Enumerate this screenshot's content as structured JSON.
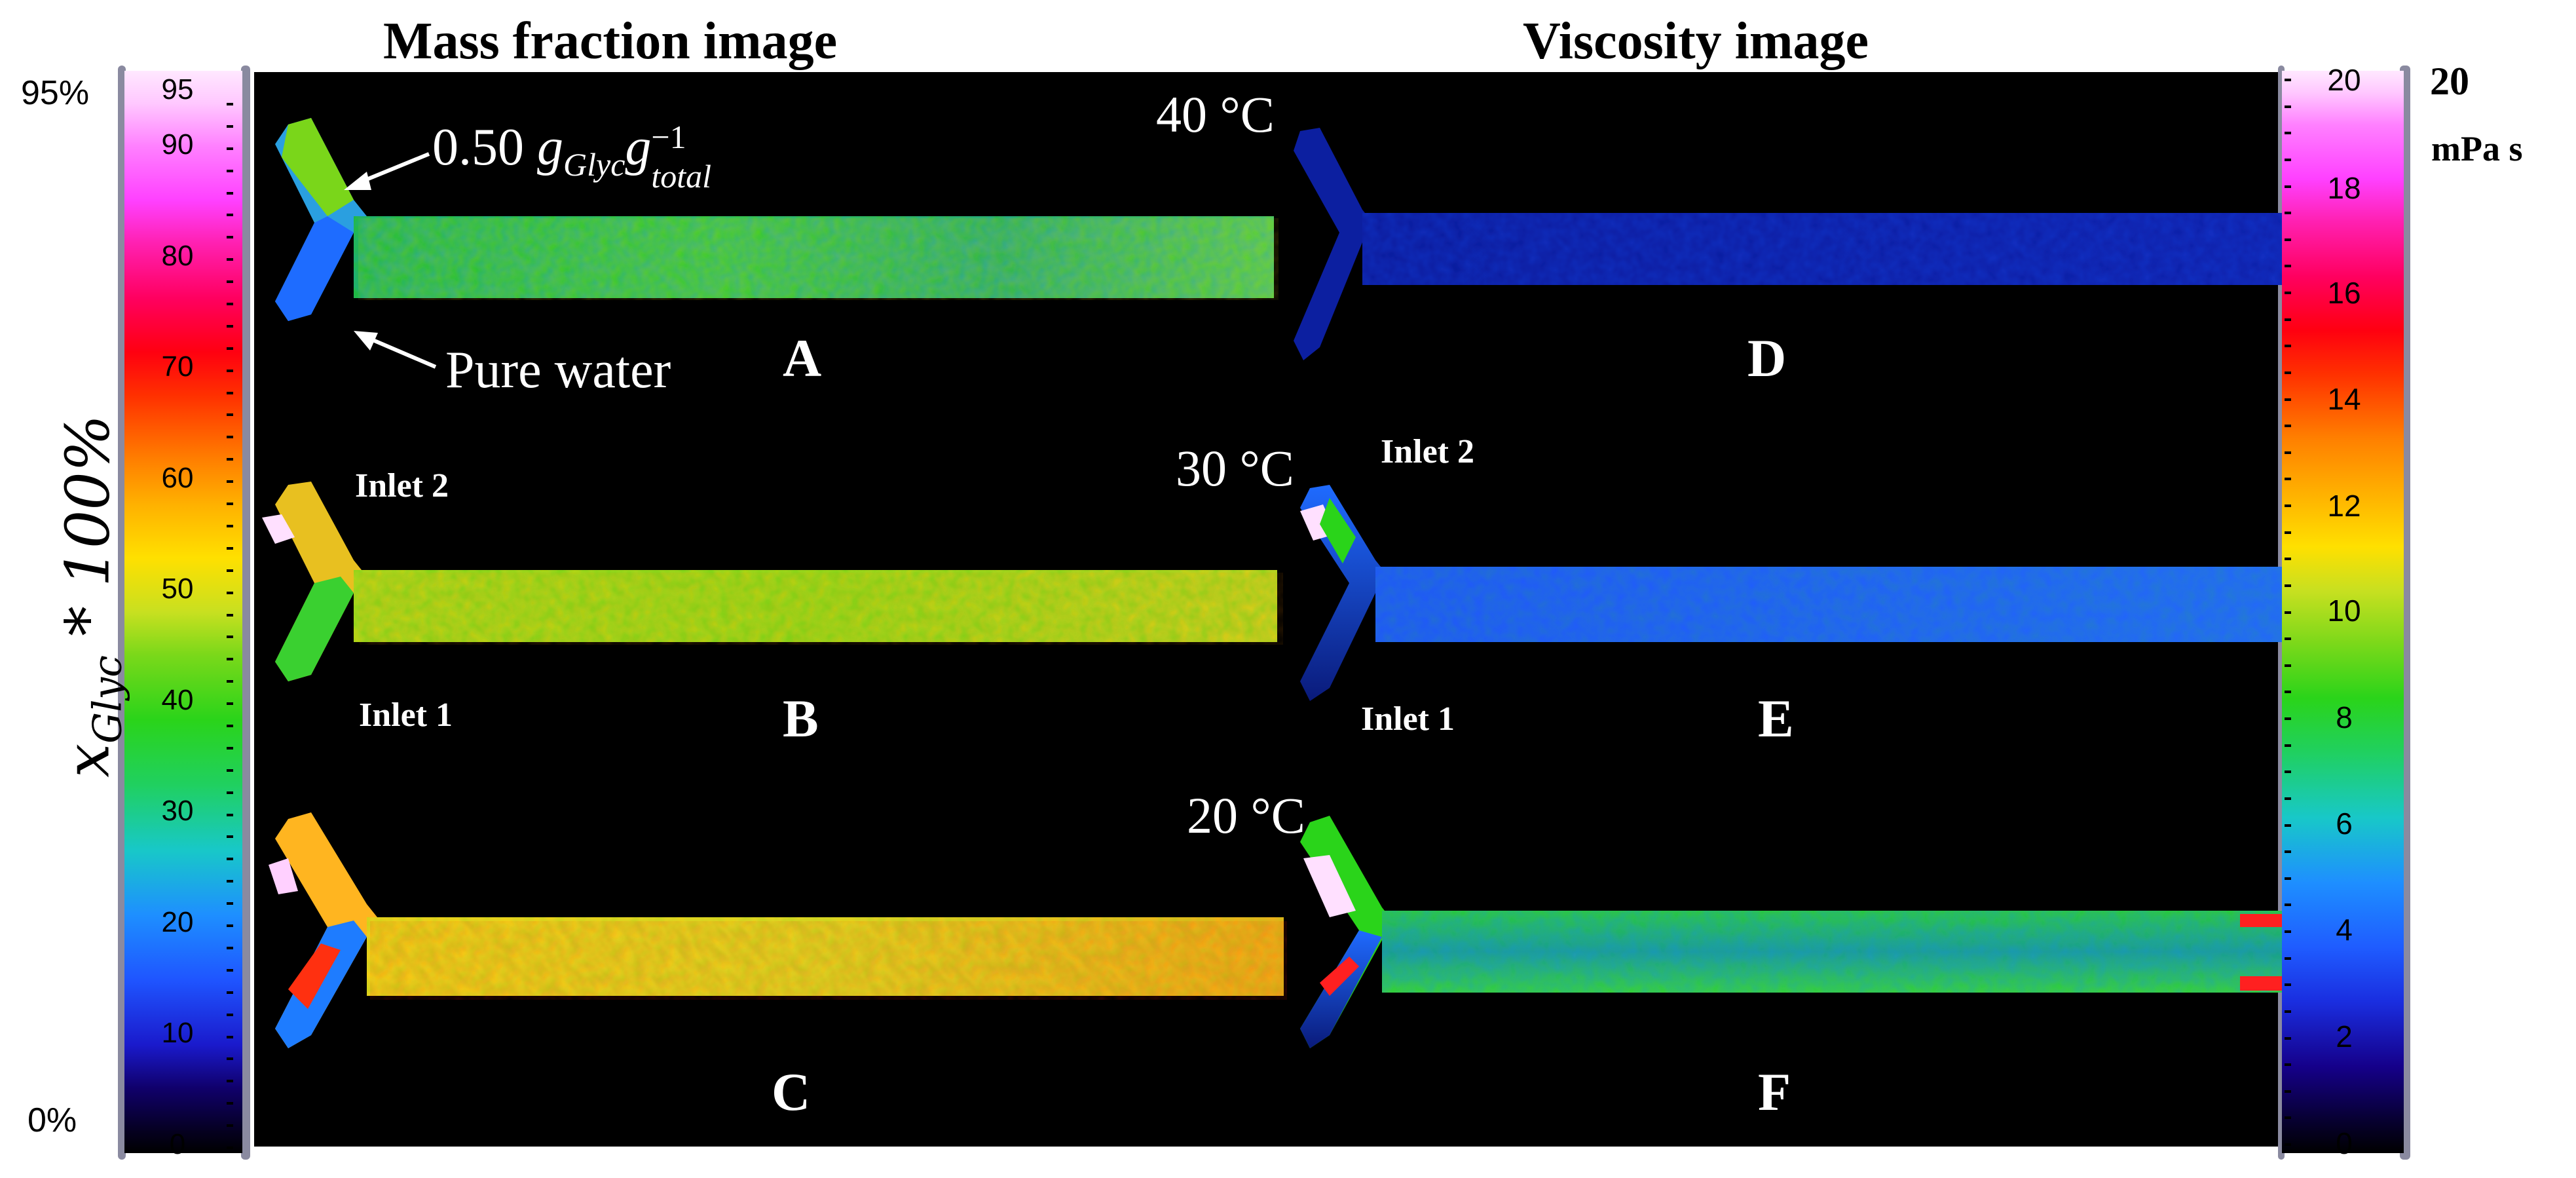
{
  "titles": {
    "left": "Mass fraction image",
    "right": "Viscosity image"
  },
  "left_colorbar": {
    "top_label": "95%",
    "bottom_label": "0%",
    "ticks": [
      "95",
      "90",
      "80",
      "70",
      "60",
      "50",
      "40",
      "30",
      "20",
      "10",
      "0"
    ],
    "axis_label": "x_Glyc * 100%"
  },
  "right_colorbar": {
    "top_value": "20",
    "unit": "mPa s",
    "ticks": [
      "20",
      "18",
      "16",
      "14",
      "12",
      "10",
      "8",
      "6",
      "4",
      "2",
      "0"
    ]
  },
  "panels": {
    "A": "A",
    "B": "B",
    "C": "C",
    "D": "D",
    "E": "E",
    "F": "F"
  },
  "temperatures": {
    "t40": "40 °C",
    "t30": "30 °C",
    "t20": "20 °C"
  },
  "inlets": {
    "inlet2_left": "Inlet 2",
    "inlet1_left": "Inlet 1",
    "inlet2_right": "Inlet 2",
    "inlet1_right": "Inlet 1"
  },
  "annotations": {
    "mass_fraction_value": "0.50",
    "mass_fraction_unit_base": "g",
    "mass_fraction_sub1": "Glyc",
    "mass_fraction_sub2": "total",
    "mass_fraction_exp": "−1",
    "pure_water": "Pure water"
  },
  "colors": {
    "background": "#000000",
    "text_on_image": "#ffffff"
  },
  "images": {
    "A": "mass-fraction map at 40 °C",
    "B": "mass-fraction map at 30 °C",
    "C": "mass-fraction map at 20 °C",
    "D": "viscosity map at 40 °C",
    "E": "viscosity map at 30 °C",
    "F": "viscosity map at 20 °C"
  }
}
